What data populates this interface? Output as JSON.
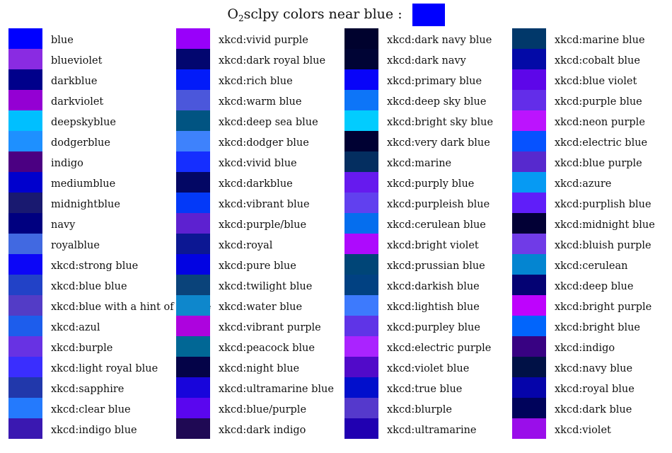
{
  "title": {
    "prefix": "O",
    "subscript": "2",
    "rest": "sclpy colors near blue :",
    "swatch_color": "#0000FF"
  },
  "chart_data": {
    "type": "table",
    "columns": [
      [
        {
          "name": "blue",
          "color": "#0000FF"
        },
        {
          "name": "blueviolet",
          "color": "#8A2BE2"
        },
        {
          "name": "darkblue",
          "color": "#00008B"
        },
        {
          "name": "darkviolet",
          "color": "#9400D3"
        },
        {
          "name": "deepskyblue",
          "color": "#00BFFF"
        },
        {
          "name": "dodgerblue",
          "color": "#1E90FF"
        },
        {
          "name": "indigo",
          "color": "#4B0082"
        },
        {
          "name": "mediumblue",
          "color": "#0000CD"
        },
        {
          "name": "midnightblue",
          "color": "#191970"
        },
        {
          "name": "navy",
          "color": "#000080"
        },
        {
          "name": "royalblue",
          "color": "#4169E1"
        },
        {
          "name": "xkcd:strong blue",
          "color": "#0C06F7"
        },
        {
          "name": "xkcd:blue blue",
          "color": "#2242C7"
        },
        {
          "name": "xkcd:blue with a hint of purple",
          "color": "#533CC6"
        },
        {
          "name": "xkcd:azul",
          "color": "#1D5DEC"
        },
        {
          "name": "xkcd:burple",
          "color": "#6832E3"
        },
        {
          "name": "xkcd:light royal blue",
          "color": "#3A2EFE"
        },
        {
          "name": "xkcd:sapphire",
          "color": "#2138AB"
        },
        {
          "name": "xkcd:clear blue",
          "color": "#247AFD"
        },
        {
          "name": "xkcd:indigo blue",
          "color": "#3A18B1"
        }
      ],
      [
        {
          "name": "xkcd:vivid purple",
          "color": "#9900FA"
        },
        {
          "name": "xkcd:dark royal blue",
          "color": "#02066F"
        },
        {
          "name": "xkcd:rich blue",
          "color": "#021BF9"
        },
        {
          "name": "xkcd:warm blue",
          "color": "#4B57DB"
        },
        {
          "name": "xkcd:deep sea blue",
          "color": "#015482"
        },
        {
          "name": "xkcd:dodger blue",
          "color": "#3E82FC"
        },
        {
          "name": "xkcd:vivid blue",
          "color": "#152EFF"
        },
        {
          "name": "xkcd:darkblue",
          "color": "#030764"
        },
        {
          "name": "xkcd:vibrant blue",
          "color": "#0339F8"
        },
        {
          "name": "xkcd:purple/blue",
          "color": "#5D21D0"
        },
        {
          "name": "xkcd:royal",
          "color": "#0C1793"
        },
        {
          "name": "xkcd:pure blue",
          "color": "#0203E2"
        },
        {
          "name": "xkcd:twilight blue",
          "color": "#0A437A"
        },
        {
          "name": "xkcd:water blue",
          "color": "#0E87CC"
        },
        {
          "name": "xkcd:vibrant purple",
          "color": "#AD03DE"
        },
        {
          "name": "xkcd:peacock blue",
          "color": "#016795"
        },
        {
          "name": "xkcd:night blue",
          "color": "#040348"
        },
        {
          "name": "xkcd:ultramarine blue",
          "color": "#1805DB"
        },
        {
          "name": "xkcd:blue/purple",
          "color": "#5A06EF"
        },
        {
          "name": "xkcd:dark indigo",
          "color": "#1F0954"
        }
      ],
      [
        {
          "name": "xkcd:dark navy blue",
          "color": "#00022E"
        },
        {
          "name": "xkcd:dark navy",
          "color": "#000435"
        },
        {
          "name": "xkcd:primary blue",
          "color": "#0804F9"
        },
        {
          "name": "xkcd:deep sky blue",
          "color": "#0D75F8"
        },
        {
          "name": "xkcd:bright sky blue",
          "color": "#02CCFE"
        },
        {
          "name": "xkcd:very dark blue",
          "color": "#000133"
        },
        {
          "name": "xkcd:marine",
          "color": "#042E60"
        },
        {
          "name": "xkcd:purply blue",
          "color": "#661AEE"
        },
        {
          "name": "xkcd:purpleish blue",
          "color": "#6140EF"
        },
        {
          "name": "xkcd:cerulean blue",
          "color": "#056EEE"
        },
        {
          "name": "xkcd:bright violet",
          "color": "#AD0AFD"
        },
        {
          "name": "xkcd:prussian blue",
          "color": "#004577"
        },
        {
          "name": "xkcd:darkish blue",
          "color": "#014182"
        },
        {
          "name": "xkcd:lightish blue",
          "color": "#3D7AFD"
        },
        {
          "name": "xkcd:purpley blue",
          "color": "#5F34E7"
        },
        {
          "name": "xkcd:electric purple",
          "color": "#AA23FF"
        },
        {
          "name": "xkcd:violet blue",
          "color": "#510AC9"
        },
        {
          "name": "xkcd:true blue",
          "color": "#010FCC"
        },
        {
          "name": "xkcd:blurple",
          "color": "#5539CC"
        },
        {
          "name": "xkcd:ultramarine",
          "color": "#2000B1"
        }
      ],
      [
        {
          "name": "xkcd:marine blue",
          "color": "#01386A"
        },
        {
          "name": "xkcd:cobalt blue",
          "color": "#030AA7"
        },
        {
          "name": "xkcd:blue violet",
          "color": "#5D06E9"
        },
        {
          "name": "xkcd:purple blue",
          "color": "#632DE9"
        },
        {
          "name": "xkcd:neon purple",
          "color": "#BC13FE"
        },
        {
          "name": "xkcd:electric blue",
          "color": "#0652FF"
        },
        {
          "name": "xkcd:blue purple",
          "color": "#5729CE"
        },
        {
          "name": "xkcd:azure",
          "color": "#069AF3"
        },
        {
          "name": "xkcd:purplish blue",
          "color": "#601EF9"
        },
        {
          "name": "xkcd:midnight blue",
          "color": "#020035"
        },
        {
          "name": "xkcd:bluish purple",
          "color": "#703BE7"
        },
        {
          "name": "xkcd:cerulean",
          "color": "#0485D1"
        },
        {
          "name": "xkcd:deep blue",
          "color": "#040273"
        },
        {
          "name": "xkcd:bright purple",
          "color": "#BE03FD"
        },
        {
          "name": "xkcd:bright blue",
          "color": "#0165FC"
        },
        {
          "name": "xkcd:indigo",
          "color": "#380282"
        },
        {
          "name": "xkcd:navy blue",
          "color": "#001146"
        },
        {
          "name": "xkcd:royal blue",
          "color": "#0504AA"
        },
        {
          "name": "xkcd:dark blue",
          "color": "#00035B"
        },
        {
          "name": "xkcd:violet",
          "color": "#9A0EEA"
        }
      ]
    ]
  }
}
